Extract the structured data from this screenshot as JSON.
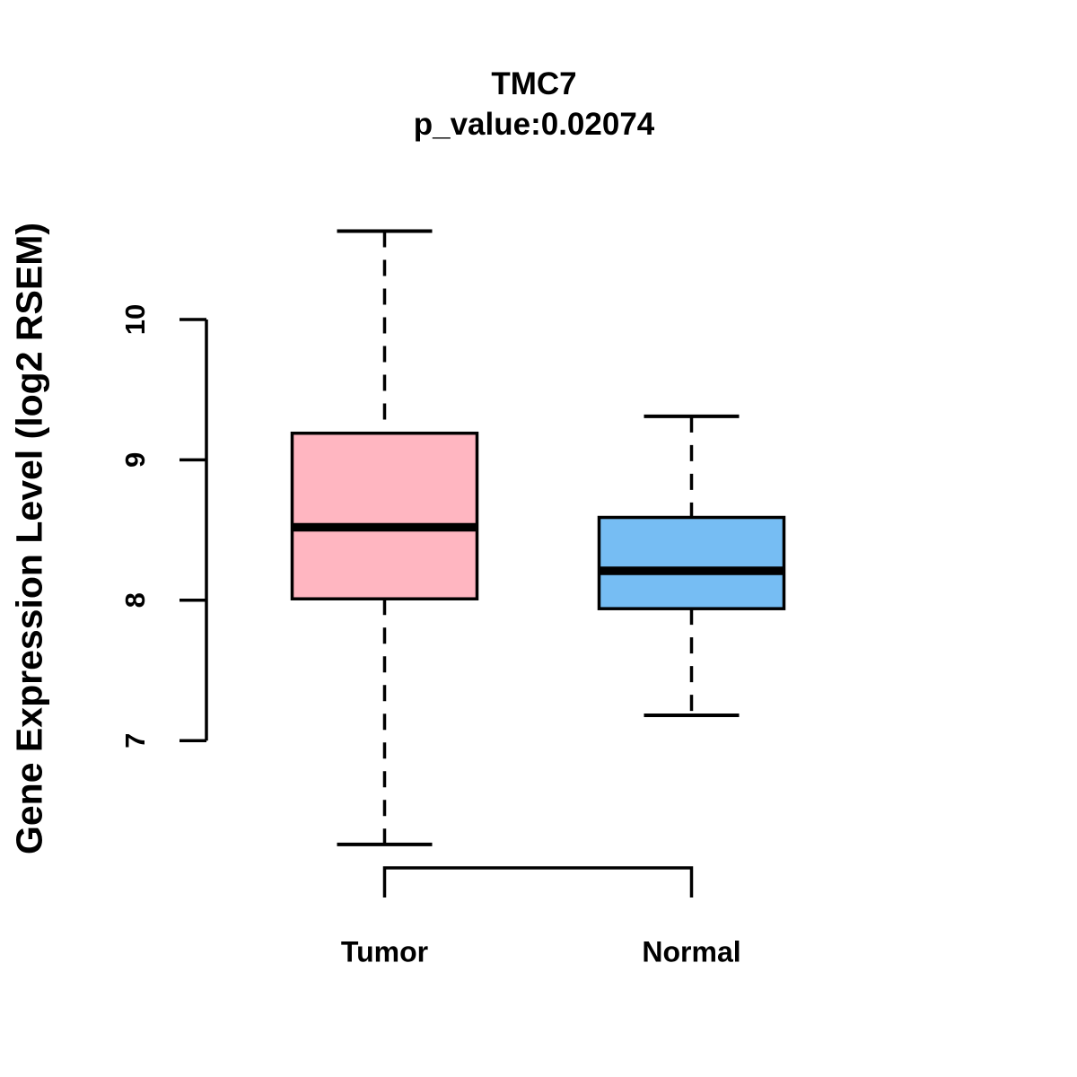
{
  "chart_data": {
    "type": "boxplot",
    "title": "TMC7",
    "subtitle": "p_value:0.02074",
    "ylabel": "Gene Expression Level (log2 RSEM)",
    "xlabel": "",
    "categories": [
      "Tumor",
      "Normal"
    ],
    "series": [
      {
        "name": "Tumor",
        "color": "#FFB6C1",
        "whisker_low": 6.26,
        "q1": 8.01,
        "median": 8.52,
        "q3": 9.19,
        "whisker_high": 10.63
      },
      {
        "name": "Normal",
        "color": "#76BDF3",
        "whisker_low": 7.18,
        "q1": 7.94,
        "median": 8.21,
        "q3": 8.59,
        "whisker_high": 9.31
      }
    ],
    "yticks": [
      7,
      8,
      9,
      10
    ],
    "ylim": [
      6.2,
      10.7
    ],
    "grid": false,
    "legend": false,
    "line_color": "#000000",
    "background_color": "#FFFFFF"
  }
}
